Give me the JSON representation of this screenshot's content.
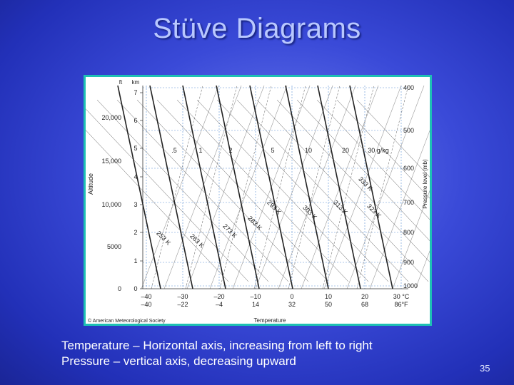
{
  "slide": {
    "title": "Stüve Diagrams",
    "caption_lines": [
      "Temperature – Horizontal axis, increasing from left to right",
      "Pressure – vertical axis, decreasing upward"
    ],
    "page_number": "35"
  },
  "diagram": {
    "axis_titles": {
      "left": "Altitude",
      "right": "Pressure level (mb)",
      "bottom": "Temperature"
    },
    "unit_headers": {
      "ft": "ft",
      "km": "km"
    },
    "km_ticks": [
      "0",
      "1",
      "2",
      "3",
      "4",
      "5",
      "6",
      "7"
    ],
    "ft_ticks": [
      "0",
      "5000",
      "10,000",
      "15,000",
      "20,000"
    ],
    "pressure_ticks": [
      "400",
      "500",
      "600",
      "700",
      "800",
      "900",
      "1000"
    ],
    "celsius_ticks": [
      "–40",
      "–30",
      "–20",
      "–10",
      "0",
      "10",
      "20",
      "30 °C"
    ],
    "fahrenheit_ticks": [
      "–40",
      "–22",
      "–4",
      "14",
      "32",
      "50",
      "68",
      "86°F"
    ],
    "mixing_ratio_labels": [
      ".5",
      "1",
      "2",
      "5",
      "10",
      "20",
      "30 g/kg"
    ],
    "dry_adiabat_labels": [
      "253 K",
      "263 K",
      "273 K",
      "283 K",
      "293 K",
      "303 K",
      "313 K",
      "323 K",
      "333 K"
    ],
    "copyright": "© American Meteorological Society",
    "line_colors": {
      "frame": "#1ec0b4",
      "grid": "#5a8fd6",
      "adiabat": "#222222",
      "moist": "#999999"
    }
  }
}
